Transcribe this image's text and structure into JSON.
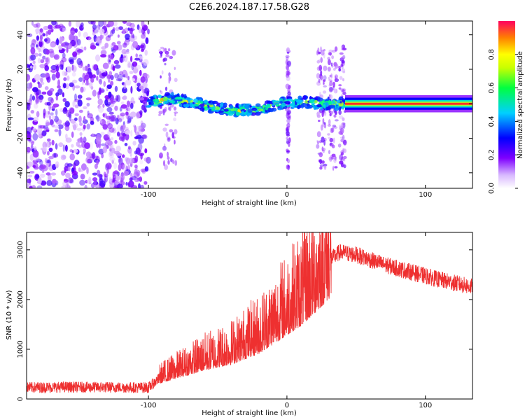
{
  "title": "C2E6.2024.187.17.58.G28",
  "chart_data": [
    {
      "type": "heatmap",
      "xlabel": "Height of straight line (km)",
      "ylabel": "Frequency (Hz)",
      "xlim": [
        -188,
        134
      ],
      "ylim": [
        -49,
        48
      ],
      "x_ticks": [
        -100,
        0,
        100
      ],
      "y_ticks": [
        -40,
        -20,
        0,
        20,
        40
      ],
      "colorbar": {
        "label": "Normalized spectral amplitude",
        "range": [
          0,
          1
        ],
        "ticks": [
          "0.0",
          "0.2",
          "0.4",
          "0.6",
          "0.8"
        ],
        "colormap": "rainbow",
        "colors": [
          "#ffffff",
          "#7f00ff",
          "#0000ff",
          "#00c8ff",
          "#00ff80",
          "#ffff00",
          "#ff8000",
          "#ff0040"
        ]
      },
      "regions": [
        {
          "x_range": [
            -188,
            -100
          ],
          "description": "broadband noise",
          "frequency_range": [
            -49,
            48
          ],
          "amplitude": 0.1
        },
        {
          "x_range": [
            -100,
            42
          ],
          "description": "wandering signal trace",
          "frequency": [
            1,
            3,
            1,
            -2,
            -4,
            -3,
            0,
            1,
            0,
            0
          ],
          "amplitude": 0.6
        },
        {
          "x_range": [
            42,
            134
          ],
          "description": "steady carrier",
          "frequency": 0,
          "amplitude": 0.9
        }
      ]
    },
    {
      "type": "line",
      "xlabel": "Height of straight line (km)",
      "ylabel": "SNR (10 * v/v)",
      "xlim": [
        -188,
        134
      ],
      "ylim": [
        0,
        3350
      ],
      "x_ticks": [
        -100,
        0,
        100
      ],
      "y_ticks": [
        0,
        1000,
        2000,
        3000
      ],
      "color": "#ee3030",
      "series": [
        {
          "x": [
            -188,
            -160,
            -130,
            -100,
            -92,
            -80,
            -60,
            -40,
            -20,
            0,
            10,
            20,
            32,
            38,
            50,
            70,
            90,
            110,
            134
          ],
          "values": [
            230,
            240,
            235,
            230,
            420,
            560,
            780,
            950,
            1250,
            1750,
            2000,
            2350,
            2820,
            2950,
            2900,
            2700,
            2550,
            2400,
            2250
          ]
        }
      ]
    }
  ]
}
